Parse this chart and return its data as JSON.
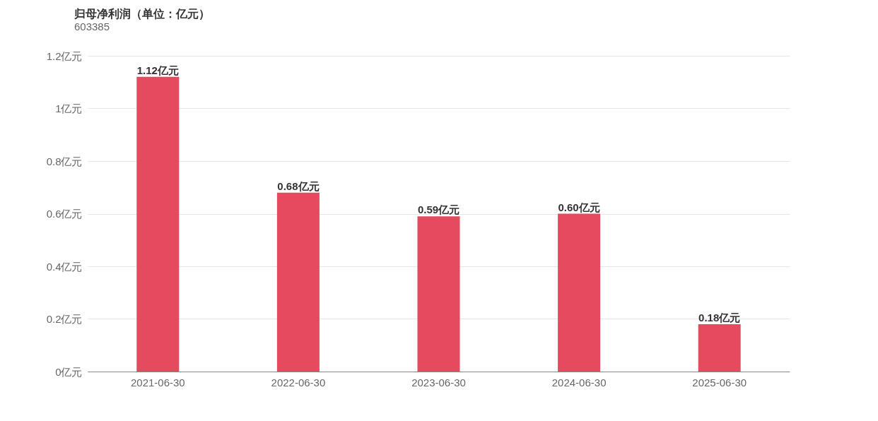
{
  "chart_data": {
    "type": "bar",
    "title": "归母净利润（单位：亿元）",
    "subtitle": "603385",
    "categories": [
      "2021-06-30",
      "2022-06-30",
      "2023-06-30",
      "2024-06-30",
      "2025-06-30"
    ],
    "values": [
      1.12,
      0.68,
      0.59,
      0.6,
      0.18
    ],
    "value_labels": [
      "1.12亿元",
      "0.68亿元",
      "0.59亿元",
      "0.60亿元",
      "0.18亿元"
    ],
    "color": "#e64a5e",
    "ylim": [
      0,
      1.2
    ],
    "yticks": [
      {
        "value": 0,
        "label": "0亿元"
      },
      {
        "value": 0.2,
        "label": "0.2亿元"
      },
      {
        "value": 0.4,
        "label": "0.4亿元"
      },
      {
        "value": 0.6,
        "label": "0.6亿元"
      },
      {
        "value": 0.8,
        "label": "0.8亿元"
      },
      {
        "value": 1,
        "label": "1亿元"
      },
      {
        "value": 1.2,
        "label": "1.2亿元"
      }
    ],
    "grid": "y"
  }
}
